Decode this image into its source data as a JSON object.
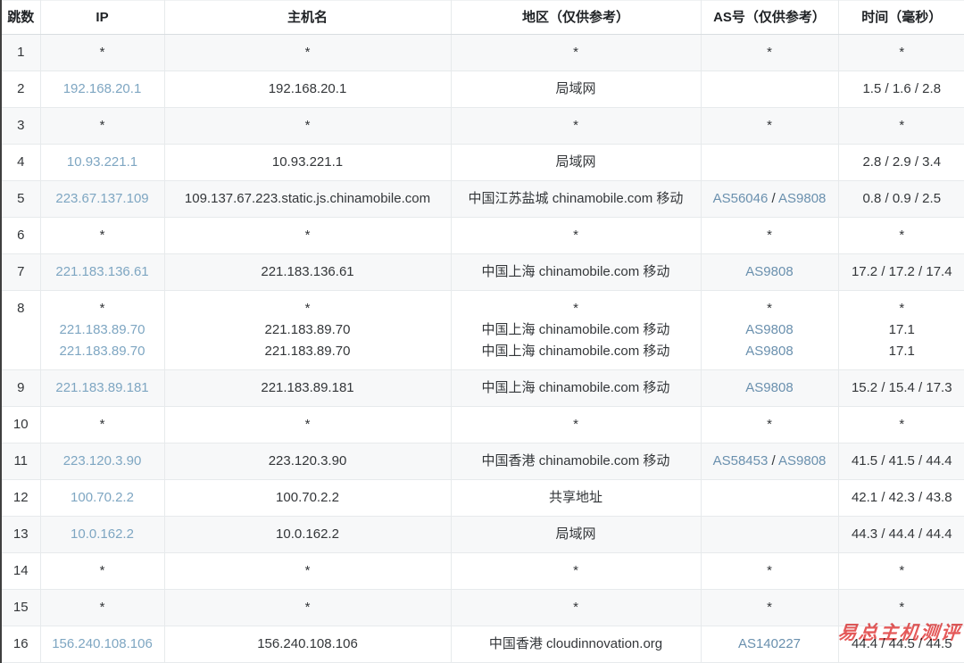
{
  "colors": {
    "link_ip": "#7ea6c2",
    "link_as": "#6a90ae",
    "stripe": "#f7f8f9",
    "watermark": "#e03c3c"
  },
  "table": {
    "headers": [
      {
        "label": "跳数"
      },
      {
        "label": "IP"
      },
      {
        "label": "主机名"
      },
      {
        "label": "地区（仅供参考）"
      },
      {
        "label": "AS号（仅供参考）"
      },
      {
        "label": "时间（毫秒）"
      }
    ],
    "rows": [
      {
        "hop": "1",
        "ip": [
          "*"
        ],
        "host": [
          "*"
        ],
        "region": [
          "*"
        ],
        "asn": [
          [
            "*"
          ]
        ],
        "time": [
          "*"
        ]
      },
      {
        "hop": "2",
        "ip": [
          "192.168.20.1"
        ],
        "host": [
          "192.168.20.1"
        ],
        "region": [
          "局域网"
        ],
        "asn": [
          []
        ],
        "time": [
          "1.5 / 1.6 / 2.8"
        ]
      },
      {
        "hop": "3",
        "ip": [
          "*"
        ],
        "host": [
          "*"
        ],
        "region": [
          "*"
        ],
        "asn": [
          [
            "*"
          ]
        ],
        "time": [
          "*"
        ]
      },
      {
        "hop": "4",
        "ip": [
          "10.93.221.1"
        ],
        "host": [
          "10.93.221.1"
        ],
        "region": [
          "局域网"
        ],
        "asn": [
          []
        ],
        "time": [
          "2.8 / 2.9 / 3.4"
        ]
      },
      {
        "hop": "5",
        "ip": [
          "223.67.137.109"
        ],
        "host": [
          "109.137.67.223.static.js.chinamobile.com"
        ],
        "region": [
          "中国江苏盐城 chinamobile.com 移动"
        ],
        "asn": [
          [
            "AS56046",
            "AS9808"
          ]
        ],
        "time": [
          "0.8 / 0.9 / 2.5"
        ]
      },
      {
        "hop": "6",
        "ip": [
          "*"
        ],
        "host": [
          "*"
        ],
        "region": [
          "*"
        ],
        "asn": [
          [
            "*"
          ]
        ],
        "time": [
          "*"
        ]
      },
      {
        "hop": "7",
        "ip": [
          "221.183.136.61"
        ],
        "host": [
          "221.183.136.61"
        ],
        "region": [
          "中国上海 chinamobile.com 移动"
        ],
        "asn": [
          [
            "AS9808"
          ]
        ],
        "time": [
          "17.2 / 17.2 / 17.4"
        ]
      },
      {
        "hop": "8",
        "ip": [
          "*",
          "221.183.89.70",
          "221.183.89.70"
        ],
        "host": [
          "*",
          "221.183.89.70",
          "221.183.89.70"
        ],
        "region": [
          "*",
          "中国上海 chinamobile.com 移动",
          "中国上海 chinamobile.com 移动"
        ],
        "asn": [
          [
            "*"
          ],
          [
            "AS9808"
          ],
          [
            "AS9808"
          ]
        ],
        "time": [
          "*",
          "17.1",
          "17.1"
        ]
      },
      {
        "hop": "9",
        "ip": [
          "221.183.89.181"
        ],
        "host": [
          "221.183.89.181"
        ],
        "region": [
          "中国上海 chinamobile.com 移动"
        ],
        "asn": [
          [
            "AS9808"
          ]
        ],
        "time": [
          "15.2 / 15.4 / 17.3"
        ]
      },
      {
        "hop": "10",
        "ip": [
          "*"
        ],
        "host": [
          "*"
        ],
        "region": [
          "*"
        ],
        "asn": [
          [
            "*"
          ]
        ],
        "time": [
          "*"
        ]
      },
      {
        "hop": "11",
        "ip": [
          "223.120.3.90"
        ],
        "host": [
          "223.120.3.90"
        ],
        "region": [
          "中国香港 chinamobile.com 移动"
        ],
        "asn": [
          [
            "AS58453",
            "AS9808"
          ]
        ],
        "time": [
          "41.5 / 41.5 / 44.4"
        ]
      },
      {
        "hop": "12",
        "ip": [
          "100.70.2.2"
        ],
        "host": [
          "100.70.2.2"
        ],
        "region": [
          "共享地址"
        ],
        "asn": [
          []
        ],
        "time": [
          "42.1 / 42.3 / 43.8"
        ]
      },
      {
        "hop": "13",
        "ip": [
          "10.0.162.2"
        ],
        "host": [
          "10.0.162.2"
        ],
        "region": [
          "局域网"
        ],
        "asn": [
          []
        ],
        "time": [
          "44.3 / 44.4 / 44.4"
        ]
      },
      {
        "hop": "14",
        "ip": [
          "*"
        ],
        "host": [
          "*"
        ],
        "region": [
          "*"
        ],
        "asn": [
          [
            "*"
          ]
        ],
        "time": [
          "*"
        ]
      },
      {
        "hop": "15",
        "ip": [
          "*"
        ],
        "host": [
          "*"
        ],
        "region": [
          "*"
        ],
        "asn": [
          [
            "*"
          ]
        ],
        "time": [
          "*"
        ]
      },
      {
        "hop": "16",
        "ip": [
          "156.240.108.106"
        ],
        "host": [
          "156.240.108.106"
        ],
        "region": [
          "中国香港 cloudinnovation.org"
        ],
        "asn": [
          [
            "AS140227"
          ]
        ],
        "time": [
          "44.4 / 44.5 / 44.5"
        ]
      }
    ]
  },
  "watermark": {
    "text": "易总主机测评"
  }
}
